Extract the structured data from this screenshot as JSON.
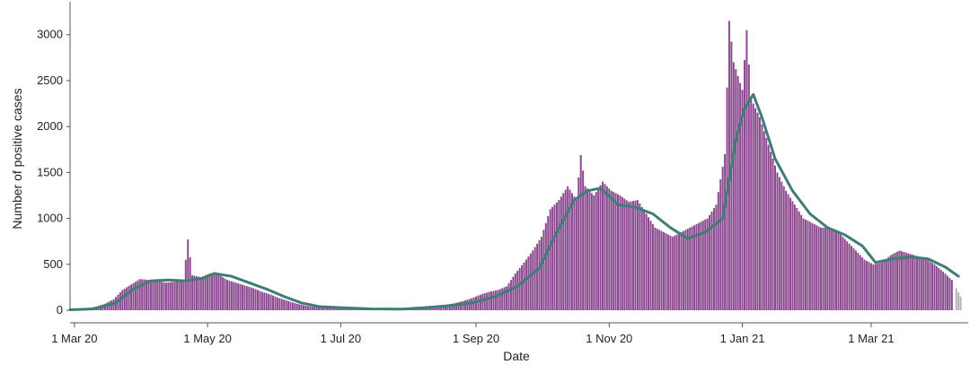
{
  "chart_data": {
    "type": "bar",
    "xlabel": "Date",
    "ylabel": "Number of positive cases",
    "ylim": [
      0,
      3300
    ],
    "x_range": [
      "2020-02-28",
      "2021-04-12"
    ],
    "grid": false,
    "y_ticks": [
      0,
      500,
      1000,
      1500,
      2000,
      2500,
      3000
    ],
    "x_ticks": [
      {
        "date": "2020-03-01",
        "label": "1 Mar 20"
      },
      {
        "date": "2020-05-01",
        "label": "1 May 20"
      },
      {
        "date": "2020-07-01",
        "label": "1 Jul 20"
      },
      {
        "date": "2020-09-01",
        "label": "1 Sep 20"
      },
      {
        "date": "2020-11-01",
        "label": "1 Nov 20"
      },
      {
        "date": "2021-01-01",
        "label": "1 Jan 21"
      },
      {
        "date": "2021-03-01",
        "label": "1 Mar 21"
      }
    ],
    "bar_color": "#8b4a8f",
    "incomplete_bar_color": "#b5b5b5",
    "line_color": "#3e7d78",
    "series": [
      {
        "type": "bar",
        "values": [
          [
            "2020-02-28",
            5
          ],
          [
            "2020-03-03",
            10
          ],
          [
            "2020-03-07",
            20
          ],
          [
            "2020-03-11",
            40
          ],
          [
            "2020-03-15",
            70
          ],
          [
            "2020-03-19",
            120
          ],
          [
            "2020-03-23",
            220
          ],
          [
            "2020-03-27",
            280
          ],
          [
            "2020-03-31",
            340
          ],
          [
            "2020-04-04",
            330
          ],
          [
            "2020-04-08",
            320
          ],
          [
            "2020-04-12",
            300
          ],
          [
            "2020-04-16",
            310
          ],
          [
            "2020-04-20",
            330
          ],
          [
            "2020-04-22",
            770
          ],
          [
            "2020-04-24",
            380
          ],
          [
            "2020-04-28",
            360
          ],
          [
            "2020-05-02",
            400
          ],
          [
            "2020-05-06",
            390
          ],
          [
            "2020-05-10",
            330
          ],
          [
            "2020-05-14",
            300
          ],
          [
            "2020-05-18",
            270
          ],
          [
            "2020-05-22",
            240
          ],
          [
            "2020-05-26",
            200
          ],
          [
            "2020-05-30",
            170
          ],
          [
            "2020-06-03",
            130
          ],
          [
            "2020-06-07",
            100
          ],
          [
            "2020-06-11",
            70
          ],
          [
            "2020-06-15",
            50
          ],
          [
            "2020-06-19",
            35
          ],
          [
            "2020-06-23",
            30
          ],
          [
            "2020-06-27",
            28
          ],
          [
            "2020-07-01",
            25
          ],
          [
            "2020-07-05",
            22
          ],
          [
            "2020-07-09",
            20
          ],
          [
            "2020-07-13",
            18
          ],
          [
            "2020-07-17",
            15
          ],
          [
            "2020-07-21",
            15
          ],
          [
            "2020-07-25",
            18
          ],
          [
            "2020-07-29",
            22
          ],
          [
            "2020-08-02",
            25
          ],
          [
            "2020-08-06",
            30
          ],
          [
            "2020-08-10",
            40
          ],
          [
            "2020-08-14",
            50
          ],
          [
            "2020-08-18",
            60
          ],
          [
            "2020-08-22",
            75
          ],
          [
            "2020-08-26",
            100
          ],
          [
            "2020-08-30",
            130
          ],
          [
            "2020-09-03",
            170
          ],
          [
            "2020-09-07",
            200
          ],
          [
            "2020-09-11",
            220
          ],
          [
            "2020-09-15",
            260
          ],
          [
            "2020-09-19",
            400
          ],
          [
            "2020-09-23",
            520
          ],
          [
            "2020-09-27",
            650
          ],
          [
            "2020-10-01",
            800
          ],
          [
            "2020-10-05",
            1100
          ],
          [
            "2020-10-09",
            1200
          ],
          [
            "2020-10-13",
            1350
          ],
          [
            "2020-10-17",
            1200
          ],
          [
            "2020-10-19",
            1690
          ],
          [
            "2020-10-21",
            1350
          ],
          [
            "2020-10-25",
            1250
          ],
          [
            "2020-10-29",
            1400
          ],
          [
            "2020-11-02",
            1300
          ],
          [
            "2020-11-06",
            1250
          ],
          [
            "2020-11-10",
            1180
          ],
          [
            "2020-11-14",
            1200
          ],
          [
            "2020-11-18",
            1050
          ],
          [
            "2020-11-22",
            900
          ],
          [
            "2020-11-26",
            850
          ],
          [
            "2020-11-30",
            800
          ],
          [
            "2020-12-04",
            850
          ],
          [
            "2020-12-08",
            900
          ],
          [
            "2020-12-12",
            950
          ],
          [
            "2020-12-16",
            1000
          ],
          [
            "2020-12-20",
            1150
          ],
          [
            "2020-12-24",
            1700
          ],
          [
            "2020-12-26",
            3150
          ],
          [
            "2020-12-28",
            2700
          ],
          [
            "2021-01-01",
            2400
          ],
          [
            "2021-01-03",
            3050
          ],
          [
            "2021-01-05",
            2300
          ],
          [
            "2021-01-09",
            2100
          ],
          [
            "2021-01-13",
            1800
          ],
          [
            "2021-01-17",
            1500
          ],
          [
            "2021-01-21",
            1300
          ],
          [
            "2021-01-25",
            1150
          ],
          [
            "2021-01-29",
            1000
          ],
          [
            "2021-02-02",
            950
          ],
          [
            "2021-02-06",
            900
          ],
          [
            "2021-02-10",
            900
          ],
          [
            "2021-02-14",
            850
          ],
          [
            "2021-02-18",
            750
          ],
          [
            "2021-02-22",
            650
          ],
          [
            "2021-02-26",
            550
          ],
          [
            "2021-03-02",
            500
          ],
          [
            "2021-03-06",
            520
          ],
          [
            "2021-03-10",
            600
          ],
          [
            "2021-03-14",
            650
          ],
          [
            "2021-03-18",
            620
          ],
          [
            "2021-03-22",
            590
          ],
          [
            "2021-03-26",
            560
          ],
          [
            "2021-03-30",
            500
          ],
          [
            "2021-04-03",
            420
          ],
          [
            "2021-04-07",
            330
          ]
        ]
      },
      {
        "type": "bar",
        "incomplete": true,
        "values": [
          [
            "2021-04-09",
            240
          ],
          [
            "2021-04-11",
            150
          ]
        ]
      },
      {
        "type": "line",
        "values": [
          [
            "2020-02-28",
            5
          ],
          [
            "2020-03-10",
            15
          ],
          [
            "2020-03-20",
            80
          ],
          [
            "2020-03-28",
            230
          ],
          [
            "2020-04-05",
            320
          ],
          [
            "2020-04-13",
            330
          ],
          [
            "2020-04-21",
            320
          ],
          [
            "2020-04-29",
            350
          ],
          [
            "2020-05-04",
            400
          ],
          [
            "2020-05-12",
            370
          ],
          [
            "2020-05-20",
            300
          ],
          [
            "2020-05-28",
            230
          ],
          [
            "2020-06-05",
            150
          ],
          [
            "2020-06-13",
            80
          ],
          [
            "2020-06-21",
            40
          ],
          [
            "2020-07-01",
            28
          ],
          [
            "2020-07-15",
            15
          ],
          [
            "2020-07-29",
            12
          ],
          [
            "2020-08-10",
            30
          ],
          [
            "2020-08-20",
            50
          ],
          [
            "2020-08-30",
            80
          ],
          [
            "2020-09-10",
            150
          ],
          [
            "2020-09-20",
            260
          ],
          [
            "2020-09-30",
            460
          ],
          [
            "2020-10-08",
            850
          ],
          [
            "2020-10-16",
            1200
          ],
          [
            "2020-10-22",
            1300
          ],
          [
            "2020-10-28",
            1330
          ],
          [
            "2020-11-05",
            1150
          ],
          [
            "2020-11-13",
            1120
          ],
          [
            "2020-11-21",
            1050
          ],
          [
            "2020-11-29",
            900
          ],
          [
            "2020-12-07",
            780
          ],
          [
            "2020-12-15",
            850
          ],
          [
            "2020-12-23",
            1000
          ],
          [
            "2020-12-29",
            1850
          ],
          [
            "2021-01-02",
            2200
          ],
          [
            "2021-01-06",
            2350
          ],
          [
            "2021-01-10",
            2100
          ],
          [
            "2021-01-16",
            1650
          ],
          [
            "2021-01-24",
            1300
          ],
          [
            "2021-02-01",
            1050
          ],
          [
            "2021-02-09",
            900
          ],
          [
            "2021-02-17",
            820
          ],
          [
            "2021-02-25",
            700
          ],
          [
            "2021-03-03",
            520
          ],
          [
            "2021-03-11",
            560
          ],
          [
            "2021-03-19",
            580
          ],
          [
            "2021-03-27",
            560
          ],
          [
            "2021-04-04",
            470
          ],
          [
            "2021-04-10",
            370
          ]
        ]
      }
    ]
  }
}
